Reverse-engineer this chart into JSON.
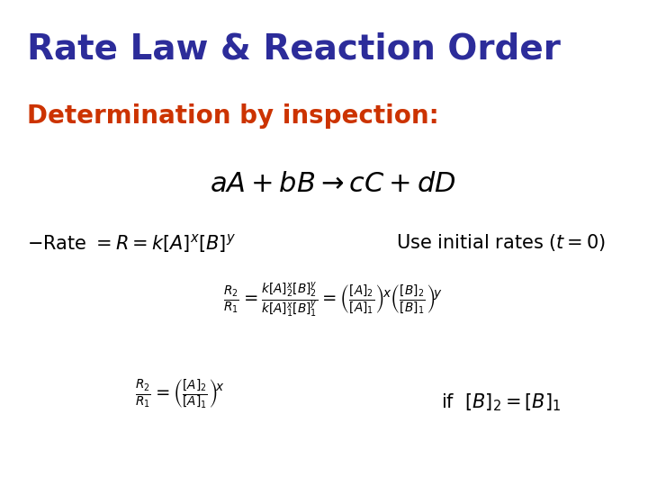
{
  "title": "Rate Law & Reaction Order",
  "title_color": "#2c2c9a",
  "title_fontsize": 28,
  "subtitle": "Determination by inspection:",
  "subtitle_color": "#cc3300",
  "subtitle_fontsize": 20,
  "reaction": "$aA + bB \\rightarrow  cC + dD$",
  "reaction_color": "#000000",
  "reaction_fontsize": 22,
  "rate_law_left": "$-$Rate $= R = k[A]^x[B]^y$",
  "rate_law_fontsize": 15,
  "initial_rates": "Use initial rates $(t = 0)$",
  "initial_rates_fontsize": 15,
  "eq1": "$\\frac{R_2}{R_1} = \\frac{k[A]_2^x[B]_2^y}{k[A]_1^x[B]_1^y} = \\left(\\frac{[A]_2}{[A]_1}\\right)^{\\!x}\\left(\\frac{[B]_2}{[B]_1}\\right)^{\\!y}$",
  "eq1_fontsize": 14,
  "eq2": "$\\frac{R_2}{R_1} = \\left(\\frac{[A]_2}{[A]_1}\\right)^{\\!x}$",
  "eq2_fontsize": 14,
  "eq2_cond": "if  $[B]_2 = [B]_1$",
  "eq2_cond_fontsize": 15,
  "text_color": "#000000",
  "bg_color": "#ffffff"
}
